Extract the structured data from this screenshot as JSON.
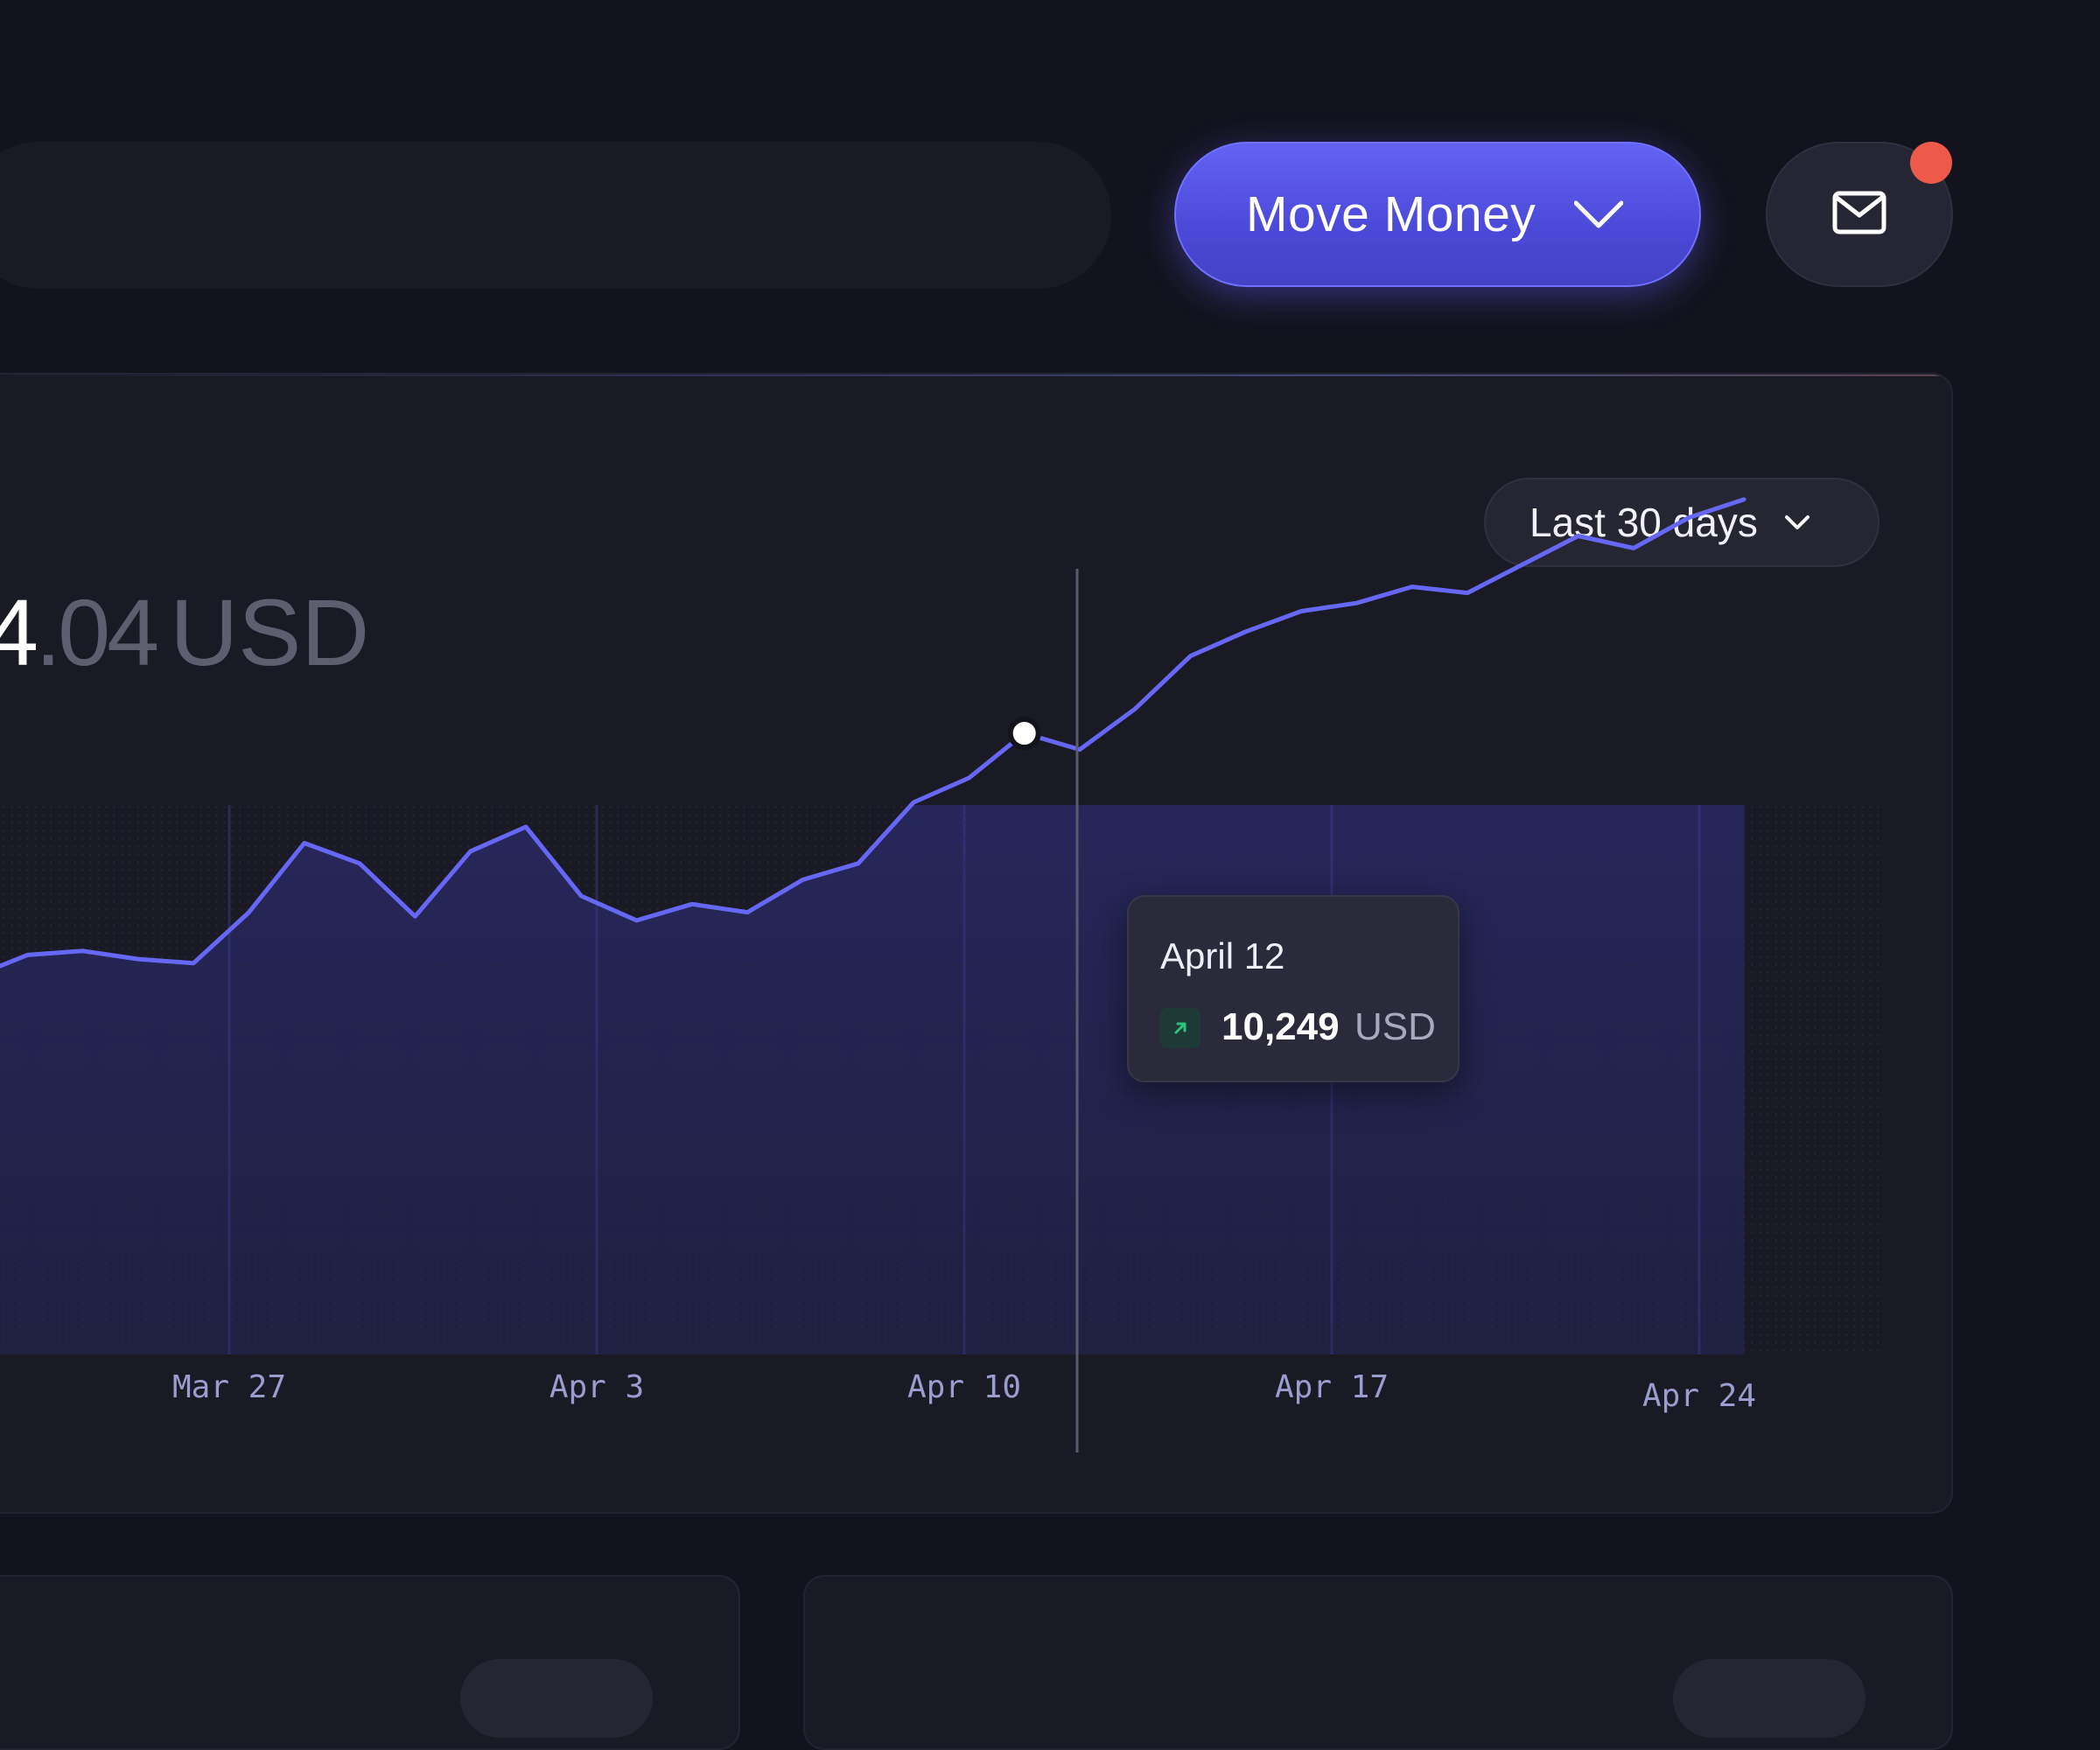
{
  "header": {
    "move_money_label": "Move Money",
    "inbox_has_notification": true,
    "notification_color": "#ee5a49"
  },
  "balance": {
    "integer_part_visible": "4",
    "decimal_part": ".04",
    "currency": "USD"
  },
  "range_select": {
    "selected": "Last 30 days"
  },
  "tooltip": {
    "date": "April 12",
    "value": "10,249",
    "currency": "USD",
    "trend": "up"
  },
  "colors": {
    "accent": "#5b5bf0",
    "line": "#6767f5",
    "background": "#13131d",
    "card": "#1a1a25",
    "trend_up": "#2ec27e"
  },
  "chart_data": {
    "type": "area",
    "x_tick_labels": [
      "Mar 27",
      "Apr 3",
      "Apr 10",
      "Apr 17",
      "Apr 24"
    ],
    "grid": true,
    "series": [
      {
        "values": [
          10.0,
          10.55,
          10.65,
          10.45,
          10.35,
          11.6,
          13.3,
          12.8,
          11.5,
          13.1,
          13.7,
          12.0,
          11.4,
          11.8,
          11.6,
          12.4,
          12.8,
          14.3,
          14.9,
          16.0,
          15.6,
          16.6,
          17.9,
          18.5,
          19.0,
          19.2,
          19.6,
          19.45,
          20.15,
          20.85,
          20.55,
          21.3,
          21.75
        ]
      }
    ],
    "highlight": {
      "index": 19,
      "label": "April 12"
    }
  }
}
